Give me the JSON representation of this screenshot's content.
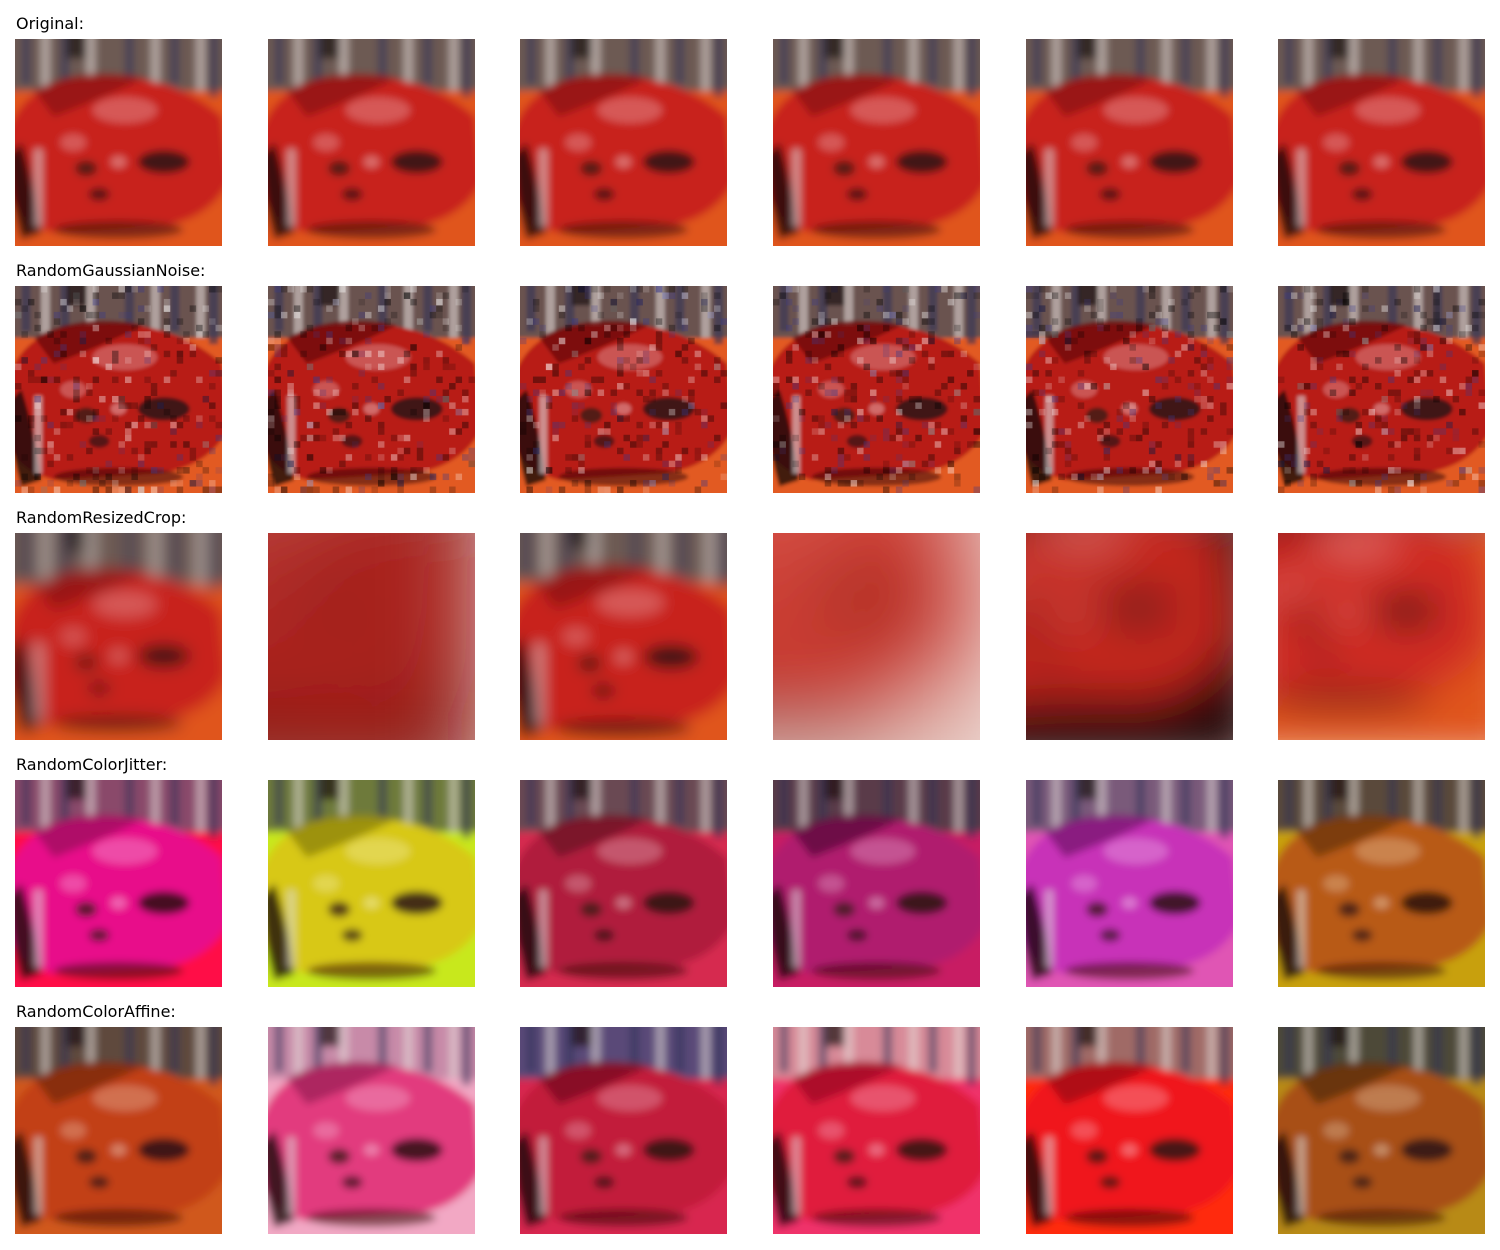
{
  "figure": {
    "rows": [
      {
        "label": "Original:",
        "tiles": [
          {
            "variant": "original",
            "body": "#c8211e",
            "shade": "#8f1412",
            "bg": "#e0551f",
            "top": "#6d5a52",
            "contrast": 0.0,
            "blur": 0.6,
            "zoom": 1.0,
            "noise": false
          },
          {
            "variant": "original",
            "body": "#c8211e",
            "shade": "#8f1412",
            "bg": "#e0551f",
            "top": "#6d5a52",
            "contrast": 0.0,
            "blur": 0.6,
            "zoom": 1.0,
            "noise": false
          },
          {
            "variant": "original",
            "body": "#c8211e",
            "shade": "#8f1412",
            "bg": "#e0551f",
            "top": "#6d5a52",
            "contrast": 0.0,
            "blur": 0.6,
            "zoom": 1.0,
            "noise": false
          },
          {
            "variant": "original",
            "body": "#c8211e",
            "shade": "#8f1412",
            "bg": "#e0551f",
            "top": "#6d5a52",
            "contrast": 0.0,
            "blur": 0.6,
            "zoom": 1.0,
            "noise": false
          },
          {
            "variant": "original",
            "body": "#c8211e",
            "shade": "#8f1412",
            "bg": "#e0551f",
            "top": "#6d5a52",
            "contrast": 0.0,
            "blur": 0.6,
            "zoom": 1.0,
            "noise": false
          },
          {
            "variant": "original",
            "body": "#c8211e",
            "shade": "#8f1412",
            "bg": "#e0551f",
            "top": "#6d5a52",
            "contrast": 0.0,
            "blur": 0.6,
            "zoom": 1.0,
            "noise": false
          }
        ]
      },
      {
        "label": "RandomGaussianNoise:",
        "tiles": [
          {
            "variant": "noise",
            "body": "#b81b19",
            "shade": "#6e0e0d",
            "bg": "#e25a22",
            "top": "#6a5350",
            "blur": 0.3,
            "zoom": 1.0,
            "noise": true
          },
          {
            "variant": "noise",
            "body": "#b81b19",
            "shade": "#6e0e0d",
            "bg": "#e25a22",
            "top": "#6a5350",
            "blur": 0.3,
            "zoom": 1.0,
            "noise": true
          },
          {
            "variant": "noise",
            "body": "#b81b19",
            "shade": "#6e0e0d",
            "bg": "#e25a22",
            "top": "#6a5350",
            "blur": 0.3,
            "zoom": 1.0,
            "noise": true
          },
          {
            "variant": "noise",
            "body": "#b81b19",
            "shade": "#6e0e0d",
            "bg": "#e25a22",
            "top": "#6a5350",
            "blur": 0.3,
            "zoom": 1.0,
            "noise": true
          },
          {
            "variant": "noise",
            "body": "#b81b19",
            "shade": "#6e0e0d",
            "bg": "#e25a22",
            "top": "#6a5350",
            "blur": 0.3,
            "zoom": 1.0,
            "noise": true
          },
          {
            "variant": "noise",
            "body": "#b81b19",
            "shade": "#6e0e0d",
            "bg": "#e25a22",
            "top": "#6a5350",
            "blur": 0.3,
            "zoom": 1.0,
            "noise": true
          }
        ]
      },
      {
        "label": "RandomResizedCrop:",
        "tiles": [
          {
            "variant": "crop",
            "body": "#c8211e",
            "shade": "#8f1412",
            "bg": "#e0551f",
            "top": "#6d5a52",
            "blur": 1.2,
            "zoom": 1.0,
            "noise": false
          },
          {
            "variant": "crop",
            "body": "#b5241c",
            "shade": "#6f1210",
            "bg": "#8a1a12",
            "top": "#8f6a62",
            "blur": 4.0,
            "zoom": 1.9,
            "noise": false
          },
          {
            "variant": "crop",
            "body": "#c8211e",
            "shade": "#8f1412",
            "bg": "#e0551f",
            "top": "#6d5a52",
            "blur": 1.0,
            "zoom": 1.05,
            "noise": false
          },
          {
            "variant": "crop",
            "body": "#d23a2e",
            "shade": "#8f1412",
            "bg": "#e6c7c0",
            "top": "#d95a45",
            "blur": 3.5,
            "zoom": 2.0,
            "noise": false
          },
          {
            "variant": "crop",
            "body": "#c5271f",
            "shade": "#5c0f0c",
            "bg": "#2b0c0a",
            "top": "#7a5a55",
            "blur": 2.5,
            "zoom": 1.45,
            "noise": false
          },
          {
            "variant": "crop",
            "body": "#cf2b24",
            "shade": "#8f1412",
            "bg": "#e0551f",
            "top": "#6d5a52",
            "blur": 2.2,
            "zoom": 1.3,
            "noise": false
          }
        ]
      },
      {
        "label": "RandomColorJitter:",
        "tiles": [
          {
            "variant": "jitter",
            "body": "#e8118a",
            "shade": "#a00d5f",
            "bg": "#ff1146",
            "top": "#8a4a6a",
            "blur": 0.6,
            "zoom": 1.0,
            "noise": false
          },
          {
            "variant": "jitter",
            "body": "#d8c814",
            "shade": "#8f8410",
            "bg": "#c8e81a",
            "top": "#6e7a3a",
            "blur": 0.6,
            "zoom": 1.0,
            "noise": false
          },
          {
            "variant": "jitter",
            "body": "#b01f3c",
            "shade": "#6e1125",
            "bg": "#d62a50",
            "top": "#6a4a52",
            "blur": 0.6,
            "zoom": 1.0,
            "noise": false
          },
          {
            "variant": "jitter",
            "body": "#b01a6e",
            "shade": "#5e0d3c",
            "bg": "#c81e64",
            "top": "#5a3a4a",
            "blur": 0.6,
            "zoom": 1.0,
            "noise": false
          },
          {
            "variant": "jitter",
            "body": "#c830b8",
            "shade": "#7a1a72",
            "bg": "#e055b4",
            "top": "#7a5a7a",
            "blur": 0.6,
            "zoom": 1.0,
            "noise": false
          },
          {
            "variant": "jitter",
            "body": "#b85a12",
            "shade": "#6e3510",
            "bg": "#c8a010",
            "top": "#5a4a3a",
            "blur": 0.6,
            "zoom": 1.0,
            "noise": false
          }
        ]
      },
      {
        "label": "RandomColorAffine:",
        "tiles": [
          {
            "variant": "affine",
            "body": "#c24014",
            "shade": "#7a2810",
            "bg": "#d0581a",
            "top": "#5e4a3e",
            "blur": 0.6,
            "zoom": 1.0,
            "noise": false
          },
          {
            "variant": "affine",
            "body": "#e23a7e",
            "shade": "#a0205a",
            "bg": "#f2a8c4",
            "top": "#c88aa8",
            "blur": 0.6,
            "zoom": 1.0,
            "noise": false
          },
          {
            "variant": "affine",
            "body": "#c21a3a",
            "shade": "#7a0e24",
            "bg": "#d82850",
            "top": "#5a4a78",
            "blur": 0.6,
            "zoom": 1.0,
            "noise": false
          },
          {
            "variant": "affine",
            "body": "#e01a3c",
            "shade": "#a00e28",
            "bg": "#f0306a",
            "top": "#d88a98",
            "blur": 0.6,
            "zoom": 1.0,
            "noise": false
          },
          {
            "variant": "affine",
            "body": "#f0141e",
            "shade": "#a00e12",
            "bg": "#ff2a10",
            "top": "#a06a66",
            "blur": 0.6,
            "zoom": 1.0,
            "noise": false
          },
          {
            "variant": "affine",
            "body": "#a85014",
            "shade": "#5a3010",
            "bg": "#b88a12",
            "top": "#4e4a38",
            "blur": 0.6,
            "zoom": 1.0,
            "noise": false
          }
        ]
      }
    ]
  }
}
